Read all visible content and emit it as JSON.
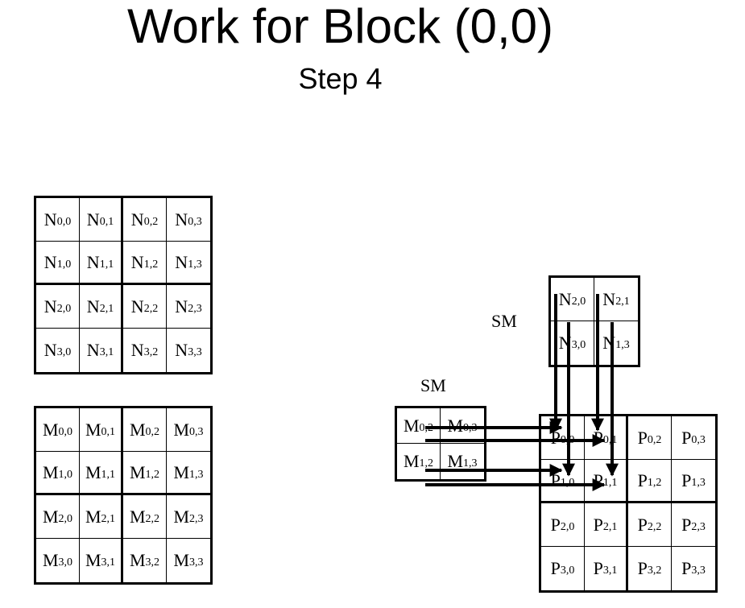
{
  "title": "Work for Block (0,0)",
  "subtitle": "Step 4",
  "sm_labels": [
    "SM",
    "SM"
  ],
  "matrices": {
    "N": [
      [
        {
          "b": "N",
          "s": "0,0"
        },
        {
          "b": "N",
          "s": "0,1"
        },
        {
          "b": "N",
          "s": "0,2"
        },
        {
          "b": "N",
          "s": "0,3"
        }
      ],
      [
        {
          "b": "N",
          "s": "1,0"
        },
        {
          "b": "N",
          "s": "1,1"
        },
        {
          "b": "N",
          "s": "1,2"
        },
        {
          "b": "N",
          "s": "1,3"
        }
      ],
      [
        {
          "b": "N",
          "s": "2,0"
        },
        {
          "b": "N",
          "s": "2,1"
        },
        {
          "b": "N",
          "s": "2,2"
        },
        {
          "b": "N",
          "s": "2,3"
        }
      ],
      [
        {
          "b": "N",
          "s": "3,0"
        },
        {
          "b": "N",
          "s": "3,1"
        },
        {
          "b": "N",
          "s": "3,2"
        },
        {
          "b": "N",
          "s": "3,3"
        }
      ]
    ],
    "M": [
      [
        {
          "b": "M",
          "s": "0,0"
        },
        {
          "b": "M",
          "s": "0,1"
        },
        {
          "b": "M",
          "s": "0,2"
        },
        {
          "b": "M",
          "s": "0,3"
        }
      ],
      [
        {
          "b": "M",
          "s": "1,0"
        },
        {
          "b": "M",
          "s": "1,1"
        },
        {
          "b": "M",
          "s": "1,2"
        },
        {
          "b": "M",
          "s": "1,3"
        }
      ],
      [
        {
          "b": "M",
          "s": "2,0"
        },
        {
          "b": "M",
          "s": "2,1"
        },
        {
          "b": "M",
          "s": "2,2"
        },
        {
          "b": "M",
          "s": "2,3"
        }
      ],
      [
        {
          "b": "M",
          "s": "3,0"
        },
        {
          "b": "M",
          "s": "3,1"
        },
        {
          "b": "M",
          "s": "3,2"
        },
        {
          "b": "M",
          "s": "3,3"
        }
      ]
    ],
    "N_shared": [
      [
        {
          "b": "N",
          "s": "2,0"
        },
        {
          "b": "N",
          "s": "2,1"
        }
      ],
      [
        {
          "b": "N",
          "s": "3,0"
        },
        {
          "b": "N",
          "s": "1,3"
        }
      ]
    ],
    "M_shared": [
      [
        {
          "b": "M",
          "s": "0,2"
        },
        {
          "b": "M",
          "s": "0,3"
        }
      ],
      [
        {
          "b": "M",
          "s": "1,2"
        },
        {
          "b": "M",
          "s": "1,3"
        }
      ]
    ],
    "P": [
      [
        {
          "b": "P",
          "s": "0,0"
        },
        {
          "b": "P",
          "s": "0,1"
        },
        {
          "b": "P",
          "s": "0,2"
        },
        {
          "b": "P",
          "s": "0,3"
        }
      ],
      [
        {
          "b": "P",
          "s": "1,0"
        },
        {
          "b": "P",
          "s": "1,1"
        },
        {
          "b": "P",
          "s": "1,2"
        },
        {
          "b": "P",
          "s": "1,3"
        }
      ],
      [
        {
          "b": "P",
          "s": "2,0"
        },
        {
          "b": "P",
          "s": "2,1"
        },
        {
          "b": "P",
          "s": "2,2"
        },
        {
          "b": "P",
          "s": "2,3"
        }
      ],
      [
        {
          "b": "P",
          "s": "3,0"
        },
        {
          "b": "P",
          "s": "3,1"
        },
        {
          "b": "P",
          "s": "3,2"
        },
        {
          "b": "P",
          "s": "3,3"
        }
      ]
    ]
  }
}
